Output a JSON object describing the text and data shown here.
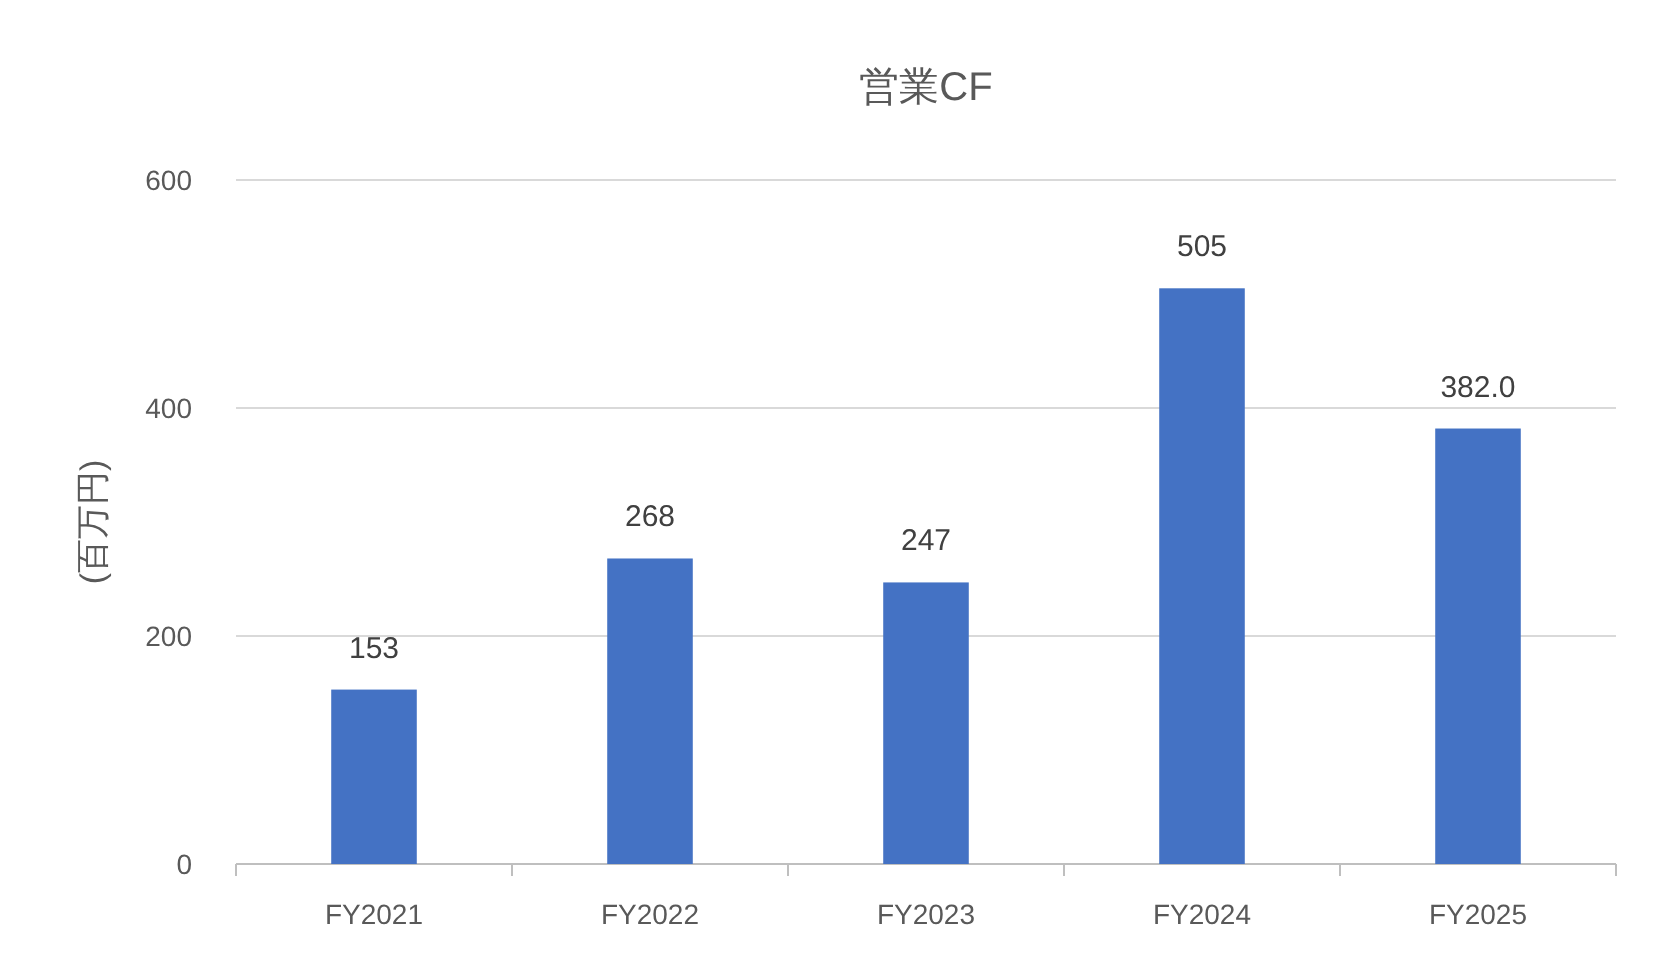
{
  "chart_data": {
    "type": "bar",
    "title": "営業CF",
    "ylabel": "(百万円)",
    "categories": [
      "FY2021",
      "FY2022",
      "FY2023",
      "FY2024",
      "FY2025"
    ],
    "values": [
      153,
      268,
      247,
      505,
      382
    ],
    "value_labels": [
      "153",
      "268",
      "247",
      "505",
      "382.0"
    ],
    "color": "#4472c4",
    "ylim": [
      0,
      600
    ],
    "yticks": [
      0,
      200,
      400,
      600
    ],
    "grid": "y"
  }
}
